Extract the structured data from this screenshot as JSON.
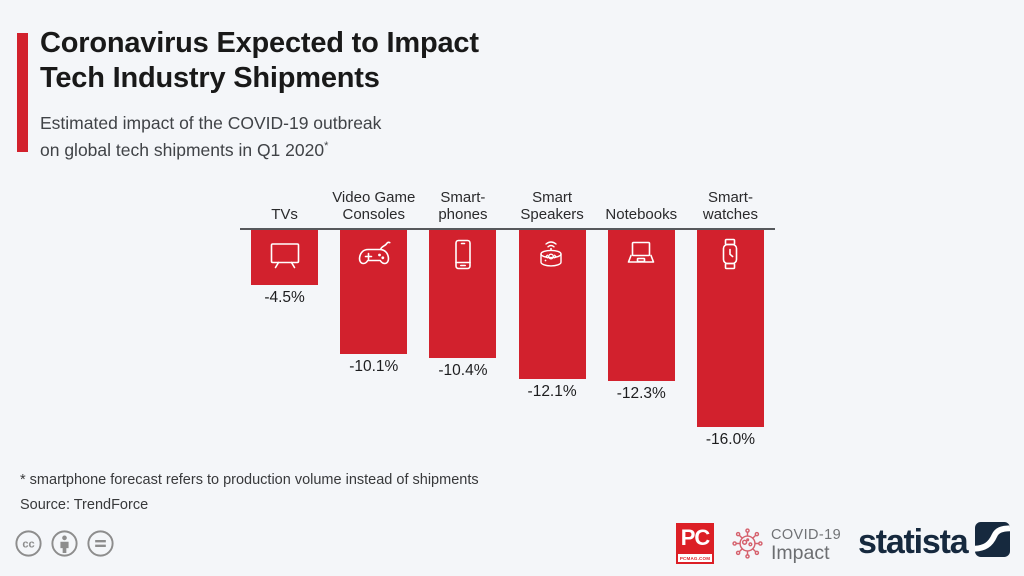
{
  "header": {
    "title": "Coronavirus Expected to Impact\nTech Industry Shipments",
    "subtitle": "Estimated impact of the COVID-19 outbreak\non global tech shipments in Q1 2020",
    "subtitle_note_mark": "*"
  },
  "chart_data": {
    "type": "bar",
    "title": "Coronavirus Expected to Impact Tech Industry Shipments",
    "subtitle": "Estimated impact of the COVID-19 outbreak on global tech shipments in Q1 2020*",
    "unit": "%",
    "orientation": "vertical-negative",
    "categories": [
      "TVs",
      "Video Game Consoles",
      "Smartphones",
      "Smart Speakers",
      "Notebooks",
      "Smartwatches"
    ],
    "category_display_lines": [
      [
        "TVs"
      ],
      [
        "Video Game",
        "Consoles"
      ],
      [
        "Smart-",
        "phones"
      ],
      [
        "Smart",
        "Speakers"
      ],
      [
        "Notebooks"
      ],
      [
        "Smart-",
        "watches"
      ]
    ],
    "values": [
      -4.5,
      -10.1,
      -10.4,
      -12.1,
      -12.3,
      -16.0
    ],
    "value_labels": [
      "-4.5%",
      "-10.1%",
      "-10.4%",
      "-12.1%",
      "-12.3%",
      "-16.0%"
    ],
    "icons": [
      "tv-icon",
      "game-controller-icon",
      "smartphone-icon",
      "smart-speaker-icon",
      "notebook-icon",
      "smartwatch-icon"
    ],
    "ylim": [
      -16.0,
      0
    ],
    "grid": false,
    "legend": false,
    "bar_color": "#d2212d",
    "baseline_color": "#56585c"
  },
  "footer": {
    "footnote": "* smartphone forecast refers to production volume instead of shipments",
    "source": "Source: TrendForce",
    "license_icons": [
      "cc-icon",
      "cc-by-icon",
      "cc-nd-icon"
    ],
    "brands": {
      "pcmag": {
        "initials": "PC",
        "caption": "PCMAG.COM"
      },
      "covid_badge": {
        "line1": "COVID-19",
        "line2": "Impact",
        "icon": "virus-icon"
      },
      "statista": {
        "wordmark": "statista",
        "icon": "statista-icon"
      }
    }
  },
  "colors": {
    "accent_red": "#d2212d",
    "pcmag_red": "#dc1f26",
    "background": "#f4f6f9",
    "baseline_gray": "#56585c",
    "statista_navy": "#16293e",
    "license_gray": "#8d8d8d",
    "virus_pink": "#d5616d"
  }
}
